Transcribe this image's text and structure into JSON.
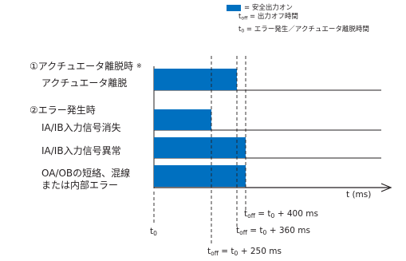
{
  "legend": {
    "color": "#0070c0",
    "safe_output_on": "= 安全出力オン",
    "toff_prefix": "t",
    "toff_sub": "off",
    "toff_text": " = 出力オフ時間",
    "t0_prefix": "t",
    "t0_sub": "0",
    "t0_text": " = エラー発生／アクチュエータ離脱時間"
  },
  "labels": {
    "case1_title": "①アクチュエータ離脱時",
    "case1_mark": "※",
    "case1_row": "アクチュエータ離脱",
    "case2_title": "②エラー発生時",
    "row_ia_loss": "IA/IB入力信号消失",
    "row_ia_abnormal": "IA/IB入力信号異常",
    "row_oa_line1": "OA/OBの短絡、混線",
    "row_oa_line2": "または内部エラー"
  },
  "axis": {
    "time_label": "t (ms)",
    "t0_prefix": "t",
    "t0_sub": "0"
  },
  "timing": {
    "t400": {
      "t": "t",
      "sub": "off",
      "eq": " = t",
      "sub0": "0",
      "value": " + 400 ms"
    },
    "t360": {
      "t": "t",
      "sub": "off",
      "eq": " = t",
      "sub0": "0",
      "value": " + 360 ms"
    },
    "t250": {
      "t": "t",
      "sub": "off",
      "eq": " = t",
      "sub0": "0",
      "value": " + 250 ms"
    }
  }
}
